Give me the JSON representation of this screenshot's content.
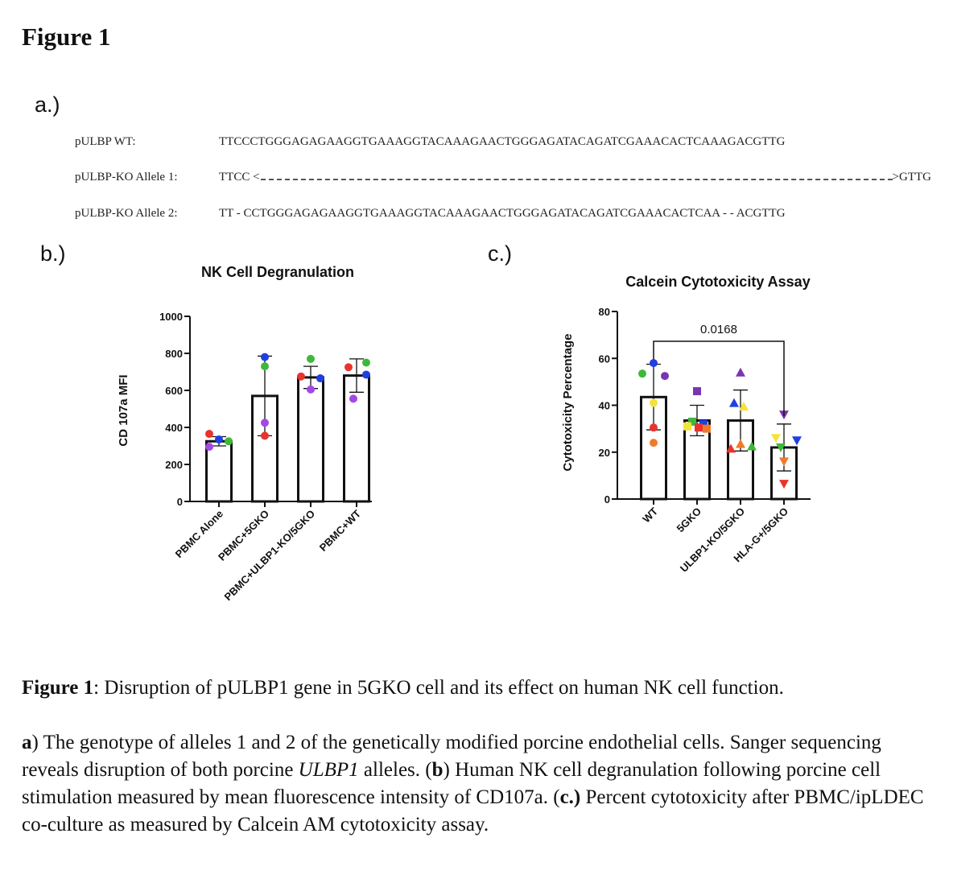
{
  "figure_title": "Figure 1",
  "panel_labels": {
    "a": "a.)",
    "b": "b.)",
    "c": "c.)"
  },
  "sequences": [
    {
      "label": "pULBP WT:",
      "text": "TTCCCTGGGAGAGAAGGTGAAAGGTACAAAGAACTGGGAGATACAGATCGAAACACTCAAAGACGTTG"
    },
    {
      "label": "pULBP-KO Allele 1:",
      "start": "TTCC <",
      "end": ">GTTG"
    },
    {
      "label": "pULBP-KO Allele 2:",
      "text": "TT - CCTGGGAGAGAAGGTGAAAGGTACAAAGAACTGGGAGATACAGATCGAAACACTCAA - - ACGTTG"
    }
  ],
  "chart_data": [
    {
      "type": "bar",
      "title": "NK Cell Degranulation",
      "xlabel": "",
      "ylabel": "CD 107a MFI",
      "ylim": [
        0,
        1000
      ],
      "yticks": [
        0,
        200,
        400,
        600,
        800,
        1000
      ],
      "categories": [
        "PBMC Alone",
        "PBMC+5GKO",
        "PBMC+ULBP1-KO/5GKO",
        "PBMC+WT"
      ],
      "values": [
        325,
        570,
        670,
        680
      ],
      "error": [
        25,
        215,
        60,
        90
      ],
      "points": [
        [
          {
            "v": 365,
            "c": "#e8342c",
            "dx": -12
          },
          {
            "v": 335,
            "c": "#1f3fe0",
            "dx": 0
          },
          {
            "v": 295,
            "c": "#a347e8",
            "dx": -12
          },
          {
            "v": 325,
            "c": "#3fb83a",
            "dx": 12
          }
        ],
        [
          {
            "v": 780,
            "c": "#1f3fe0",
            "dx": 0
          },
          {
            "v": 730,
            "c": "#3fb83a",
            "dx": 0
          },
          {
            "v": 425,
            "c": "#a347e8",
            "dx": 0
          },
          {
            "v": 355,
            "c": "#e8342c",
            "dx": 0
          }
        ],
        [
          {
            "v": 770,
            "c": "#3fb83a",
            "dx": 0
          },
          {
            "v": 675,
            "c": "#e8342c",
            "dx": -12
          },
          {
            "v": 665,
            "c": "#1f3fe0",
            "dx": 12
          },
          {
            "v": 605,
            "c": "#a347e8",
            "dx": 0
          }
        ],
        [
          {
            "v": 750,
            "c": "#3fb83a",
            "dx": 12
          },
          {
            "v": 725,
            "c": "#e8342c",
            "dx": -10
          },
          {
            "v": 685,
            "c": "#1f3fe0",
            "dx": 12
          },
          {
            "v": 555,
            "c": "#a347e8",
            "dx": -4
          }
        ]
      ]
    },
    {
      "type": "bar",
      "title": "Calcein Cytotoxicity Assay",
      "xlabel": "",
      "ylabel": "Cytotoxicity Percentage",
      "ylim": [
        0,
        80
      ],
      "yticks": [
        0,
        20,
        40,
        60,
        80
      ],
      "categories": [
        "WT",
        "5GKO",
        "ULBP1-KO/5GKO",
        "HLA-G+/5GKO"
      ],
      "values": [
        43.5,
        33.5,
        33.5,
        22
      ],
      "error": [
        14,
        6.5,
        13,
        10
      ],
      "significance": {
        "from": 0,
        "to": 3,
        "label": "0.0168"
      },
      "points": [
        [
          {
            "v": 58,
            "c": "#1f3fe0",
            "m": "circle",
            "dx": 0
          },
          {
            "v": 53.5,
            "c": "#3fb83a",
            "m": "circle",
            "dx": -14
          },
          {
            "v": 52.5,
            "c": "#7a35b0",
            "m": "circle",
            "dx": 14
          },
          {
            "v": 41,
            "c": "#f5e23a",
            "m": "circle",
            "dx": 0
          },
          {
            "v": 30.5,
            "c": "#e8342c",
            "m": "circle",
            "dx": 0
          },
          {
            "v": 24,
            "c": "#f07a2a",
            "m": "circle",
            "dx": 0
          }
        ],
        [
          {
            "v": 46,
            "c": "#7a35b0",
            "m": "square",
            "dx": 0
          },
          {
            "v": 33,
            "c": "#3fb83a",
            "m": "square",
            "dx": -6
          },
          {
            "v": 32,
            "c": "#1f3fe0",
            "m": "square",
            "dx": 8
          },
          {
            "v": 31,
            "c": "#f5e23a",
            "m": "square",
            "dx": -12
          },
          {
            "v": 30.5,
            "c": "#e8342c",
            "m": "square",
            "dx": 2
          },
          {
            "v": 30,
            "c": "#f07a2a",
            "m": "square",
            "dx": 12
          }
        ],
        [
          {
            "v": 54,
            "c": "#7a35b0",
            "m": "tri-up",
            "dx": 0
          },
          {
            "v": 41,
            "c": "#1f3fe0",
            "m": "tri-up",
            "dx": -8
          },
          {
            "v": 39.5,
            "c": "#f5e23a",
            "m": "tri-up",
            "dx": 4
          },
          {
            "v": 23.5,
            "c": "#f07a2a",
            "m": "tri-up",
            "dx": 0
          },
          {
            "v": 22.5,
            "c": "#3fb83a",
            "m": "tri-up",
            "dx": 14
          },
          {
            "v": 21.5,
            "c": "#e8342c",
            "m": "tri-up",
            "dx": -12
          }
        ],
        [
          {
            "v": 36,
            "c": "#7a35b0",
            "m": "tri-down",
            "dx": 0
          },
          {
            "v": 25,
            "c": "#1f3fe0",
            "m": "tri-down",
            "dx": 16
          },
          {
            "v": 26,
            "c": "#f5e23a",
            "m": "tri-down",
            "dx": -10
          },
          {
            "v": 22,
            "c": "#3fb83a",
            "m": "tri-down",
            "dx": -4
          },
          {
            "v": 16,
            "c": "#f07a2a",
            "m": "tri-down",
            "dx": 0
          },
          {
            "v": 6.5,
            "c": "#e8342c",
            "m": "tri-down",
            "dx": 0
          }
        ]
      ]
    }
  ],
  "caption": {
    "lead_bold": "Figure 1",
    "lead_rest": ": Disruption of pULBP1 gene in 5GKO cell and its effect on human NK cell function.",
    "a_bold": "a",
    "a_text1": ") The genotype of alleles 1 and 2 of the genetically modified porcine endothelial cells. Sanger sequencing reveals disruption of both porcine ",
    "a_italic": "ULBP1",
    "a_text2": " alleles. (",
    "b_bold": "b",
    "b_text": ") Human NK cell degranulation following porcine cell stimulation measured by mean fluorescence intensity of CD107a. (",
    "c_bold": "c.)",
    "c_text": " Percent cytotoxicity after PBMC/ipLDEC co-culture as measured by Calcein AM cytotoxicity assay."
  }
}
